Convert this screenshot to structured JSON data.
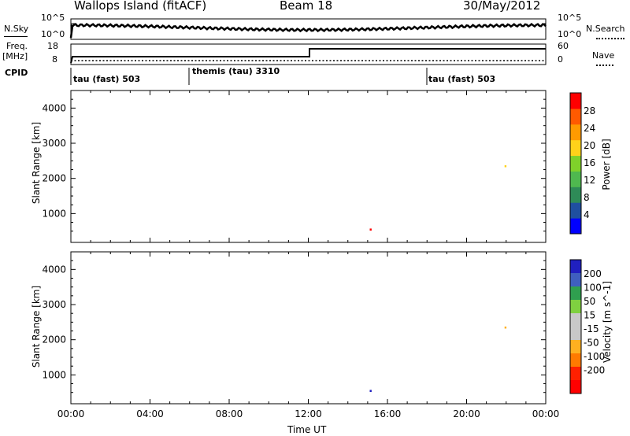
{
  "header": {
    "station": "Wallops Island (fitACF)",
    "beam": "Beam 18",
    "date": "30/May/2012"
  },
  "nsky_panel": {
    "left_label": "N.Sky",
    "right_label": "N.Search",
    "left_ticks": [
      "10^5",
      "10^0"
    ],
    "right_ticks": [
      "10^5",
      "10^0"
    ]
  },
  "freq_panel": {
    "left_label_1": "Freq.",
    "left_label_2": "[MHz]",
    "right_label": "Nave",
    "left_ticks": [
      "18",
      "8"
    ],
    "right_ticks": [
      "60",
      "0"
    ]
  },
  "cpid": {
    "label": "CPID",
    "segments": [
      "tau (fast) 503",
      "themis (tau) 3310",
      "tau (fast) 503"
    ]
  },
  "colors": {
    "power_scale": [
      "#0000ff",
      "#1f4fa0",
      "#2e8b57",
      "#4fb84f",
      "#7fd12a",
      "#ffd21a",
      "#ff9a00",
      "#ff5a00",
      "#ff0000"
    ],
    "velocity_scale": [
      "#2020c0",
      "#3f5fbf",
      "#2f9f4f",
      "#7fd040",
      "#c8c8c8",
      "#c8c8c8",
      "#ffb020",
      "#ff7a00",
      "#ff2000",
      "#ff0000"
    ]
  },
  "chart_data": [
    {
      "type": "heatmap",
      "name": "power",
      "xlabel": "",
      "ylabel": "Slant Range [km]",
      "colorbar_label": "Power [dB]",
      "colorbar_ticks": [
        "28",
        "24",
        "20",
        "16",
        "12",
        "8",
        "4"
      ],
      "x_ticks": [
        "00:00",
        "04:00",
        "08:00",
        "12:00",
        "16:00",
        "20:00",
        "00:00"
      ],
      "y_ticks": [
        "4000",
        "3000",
        "2000",
        "1000"
      ],
      "xlim": [
        0,
        24
      ],
      "ylim": [
        180,
        4500
      ]
    },
    {
      "type": "heatmap",
      "name": "velocity",
      "xlabel": "Time UT",
      "ylabel": "Slant Range [km]",
      "colorbar_label": "Velocity [m s^-1]",
      "colorbar_ticks": [
        "200",
        "100",
        "50",
        "15",
        "-15",
        "-50",
        "-100",
        "-200"
      ],
      "x_ticks": [
        "00:00",
        "04:00",
        "08:00",
        "12:00",
        "16:00",
        "20:00",
        "00:00"
      ],
      "y_ticks": [
        "4000",
        "3000",
        "2000",
        "1000"
      ],
      "xlim": [
        0,
        24
      ],
      "ylim": [
        180,
        4500
      ]
    }
  ]
}
